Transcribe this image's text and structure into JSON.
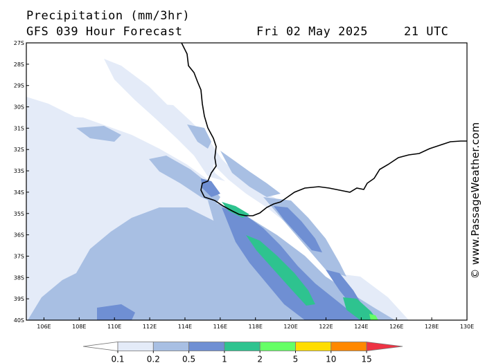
{
  "header": {
    "title": "Precipitation (mm/3hr)",
    "subtitle": "GFS 039 Hour Forecast",
    "date": "Fri 02 May 2025",
    "time": "21 UTC"
  },
  "credit": "© www.PassageWeather.com",
  "map": {
    "lat_labels": [
      "27S",
      "28S",
      "29S",
      "30S",
      "31S",
      "32S",
      "33S",
      "34S",
      "35S",
      "36S",
      "37S",
      "38S",
      "39S",
      "40S"
    ],
    "lon_labels": [
      "106E",
      "108E",
      "110E",
      "112E",
      "114E",
      "116E",
      "118E",
      "120E",
      "122E",
      "124E",
      "126E",
      "128E",
      "130E"
    ],
    "lat_range": [
      -40,
      -27
    ],
    "lon_range": [
      105,
      130
    ],
    "grid": false
  },
  "legend": {
    "labels": [
      "0.1",
      "0.2",
      "0.5",
      "1",
      "2",
      "5",
      "10",
      "15"
    ],
    "colors": [
      "#ffffff",
      "#e4ebf8",
      "#a8bfe3",
      "#6f8fd3",
      "#2ec38f",
      "#66ff66",
      "#ffdd00",
      "#ff8800",
      "#ee3344"
    ]
  },
  "colors": {
    "level_0_1": "#e4ebf8",
    "level_0_2": "#a8bfe3",
    "level_0_5": "#6f8fd3",
    "level_1": "#2ec38f",
    "level_2": "#66ff66",
    "coast": "#000000"
  }
}
